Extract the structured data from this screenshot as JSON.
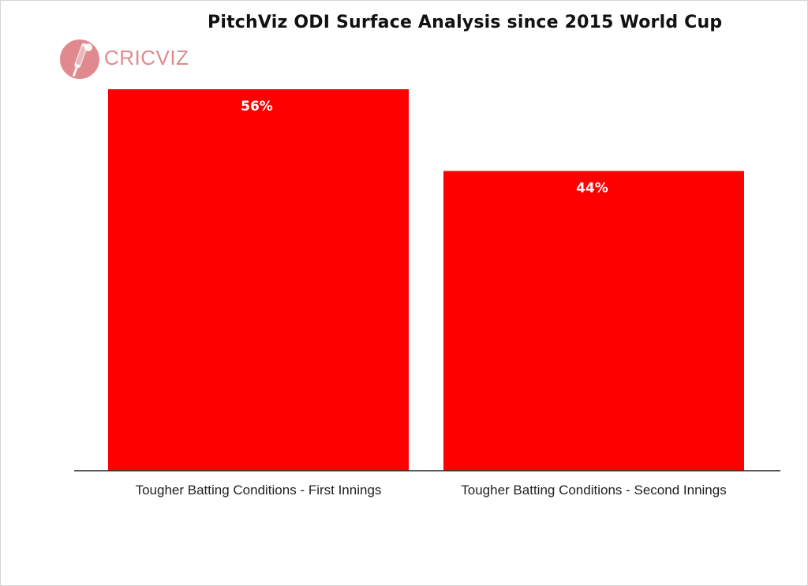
{
  "header": {
    "title": "PitchViz ODI Surface Analysis since 2015 World Cup"
  },
  "logo": {
    "text": "CRICVIZ",
    "icon": "cricket-bat-ball-icon",
    "color": "#e08a8f"
  },
  "chart_data": {
    "type": "bar",
    "title": "PitchViz ODI Surface Analysis since 2015 World Cup",
    "categories": [
      "Tougher Batting Conditions - First Innings",
      "Tougher Batting Conditions - Second Innings"
    ],
    "values": [
      56,
      44
    ],
    "data_labels": [
      "56%",
      "44%"
    ],
    "ylim": [
      0,
      60
    ],
    "xlabel": "",
    "ylabel": "",
    "grid": false,
    "legend": "none",
    "bar_color": "#ff0000",
    "label_color": "#ffffff"
  }
}
